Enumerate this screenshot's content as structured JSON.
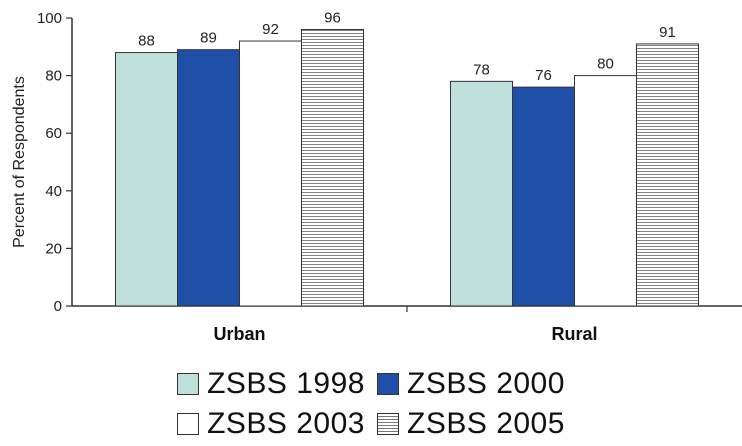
{
  "chart_data": {
    "type": "bar",
    "title": "",
    "xlabel": "",
    "ylabel": "Percent of Respondents",
    "ylim": [
      0,
      100
    ],
    "yticks": [
      0,
      20,
      40,
      60,
      80,
      100
    ],
    "categories": [
      "Urban",
      "Rural"
    ],
    "series": [
      {
        "name": "ZSBS 1998",
        "values": [
          88,
          78
        ],
        "fill": "#c0e0dc",
        "pattern": "solid"
      },
      {
        "name": "ZSBS 2000",
        "values": [
          89,
          76
        ],
        "fill": "#1f4fa6",
        "pattern": "solid"
      },
      {
        "name": "ZSBS 2003",
        "values": [
          92,
          80
        ],
        "fill": "#ffffff",
        "pattern": "solid"
      },
      {
        "name": "ZSBS 2005",
        "values": [
          96,
          91
        ],
        "fill": "#ffffff",
        "pattern": "horizontal-lines"
      }
    ],
    "legend_position": "bottom",
    "grid": false
  }
}
